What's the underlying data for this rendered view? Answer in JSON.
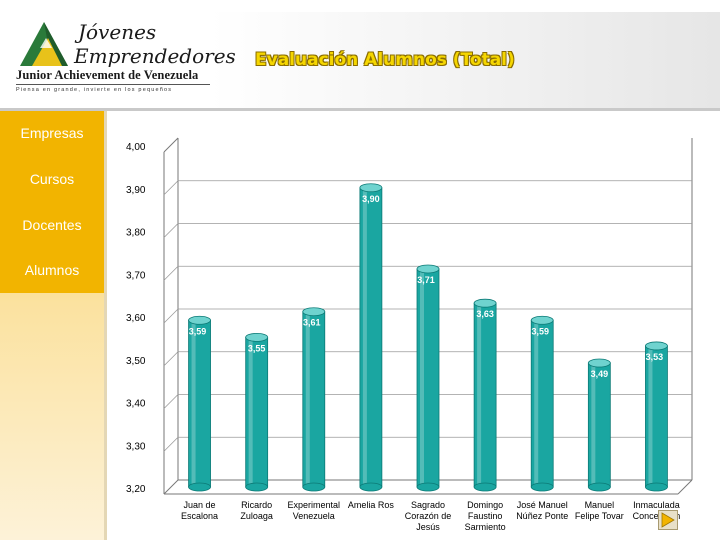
{
  "header": {
    "logo": {
      "line1": "Jóvenes",
      "line2": "Emprendedores",
      "org": "Junior Achievement de Venezuela",
      "tagline": "Piensa en grande, invierte en los pequeños"
    },
    "title": "Evaluación Alumnos (Total)"
  },
  "sidebar": {
    "items": [
      {
        "label": "Empresas"
      },
      {
        "label": "Cursos"
      },
      {
        "label": "Docentes"
      },
      {
        "label": "Alumnos"
      }
    ],
    "active_color": "#f2b400"
  },
  "colors": {
    "bar": "#1aa6a1",
    "bar_top": "#6fd3cf",
    "bar_dark": "#0c7a76",
    "title": "#f5d600",
    "label": "#1a4fa0"
  },
  "chart_data": {
    "type": "bar",
    "title": "",
    "xlabel": "",
    "ylabel": "",
    "ylim": [
      3.2,
      4.0
    ],
    "yticks": [
      "4,00",
      "3,90",
      "3,80",
      "3,70",
      "3,60",
      "3,50",
      "3,40",
      "3,30",
      "3,20"
    ],
    "grid": true,
    "categories": [
      [
        "Juan de",
        "Escalona"
      ],
      [
        "Ricardo",
        "Zuloaga"
      ],
      [
        "Experimental",
        "Venezuela"
      ],
      [
        "Amelia Ros"
      ],
      [
        "Sagrado",
        "Corazón de",
        "Jesús"
      ],
      [
        "Domingo",
        "Faustino",
        "Sarmiento"
      ],
      [
        "José Manuel",
        "Núñez Ponte"
      ],
      [
        "Manuel",
        "Felipe Tovar"
      ],
      [
        "Inmaculada",
        "Concepción"
      ]
    ],
    "values": [
      3.59,
      3.55,
      3.61,
      3.9,
      3.71,
      3.63,
      3.59,
      3.49,
      3.53
    ],
    "value_labels": [
      "3,59",
      "3,55",
      "3,61",
      "3,90",
      "3,71",
      "3,63",
      "3,59",
      "3,49",
      "3,53"
    ]
  },
  "nav": {
    "next_icon": "next-slide-icon"
  }
}
